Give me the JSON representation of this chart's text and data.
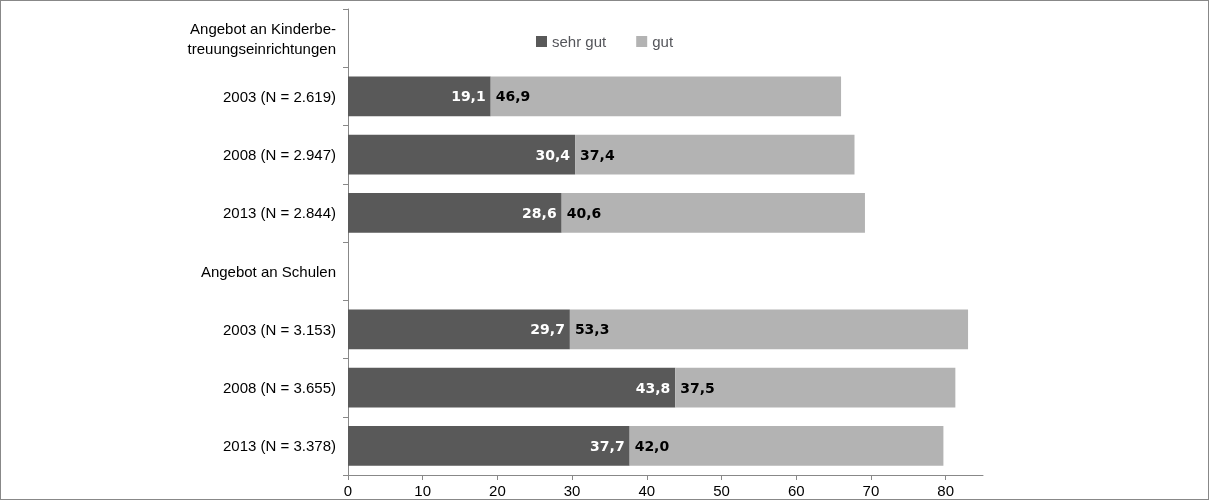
{
  "chart_data": {
    "type": "bar",
    "orientation": "horizontal",
    "stacked": true,
    "categories": [
      "Angebot an Kinderbe-\ntreuungseinrichtungen",
      "2003 (N = 2.619)",
      "2008 (N = 2.947)",
      "2013 (N = 2.844)",
      "Angebot an Schulen",
      "2003 (N = 3.153)",
      "2008 (N = 3.655)",
      "2013 (N = 3.378)"
    ],
    "series": [
      {
        "name": "sehr gut",
        "color": "#595959",
        "values": [
          null,
          19.1,
          30.4,
          28.6,
          null,
          29.7,
          43.8,
          37.7
        ],
        "value_labels": [
          null,
          "19,1",
          "30,4",
          "28,6",
          null,
          "29,7",
          "43,8",
          "37,7"
        ]
      },
      {
        "name": "gut",
        "color": "#b3b3b3",
        "values": [
          null,
          46.9,
          37.4,
          40.6,
          null,
          53.3,
          37.5,
          42.0
        ],
        "value_labels": [
          null,
          "46,9",
          "37,4",
          "40,6",
          null,
          "53,3",
          "37,5",
          "42,0"
        ]
      }
    ],
    "xlim": [
      0,
      85
    ],
    "xticks": [
      0,
      10,
      20,
      30,
      40,
      50,
      60,
      70,
      80
    ],
    "grid": false,
    "legend": "top"
  }
}
